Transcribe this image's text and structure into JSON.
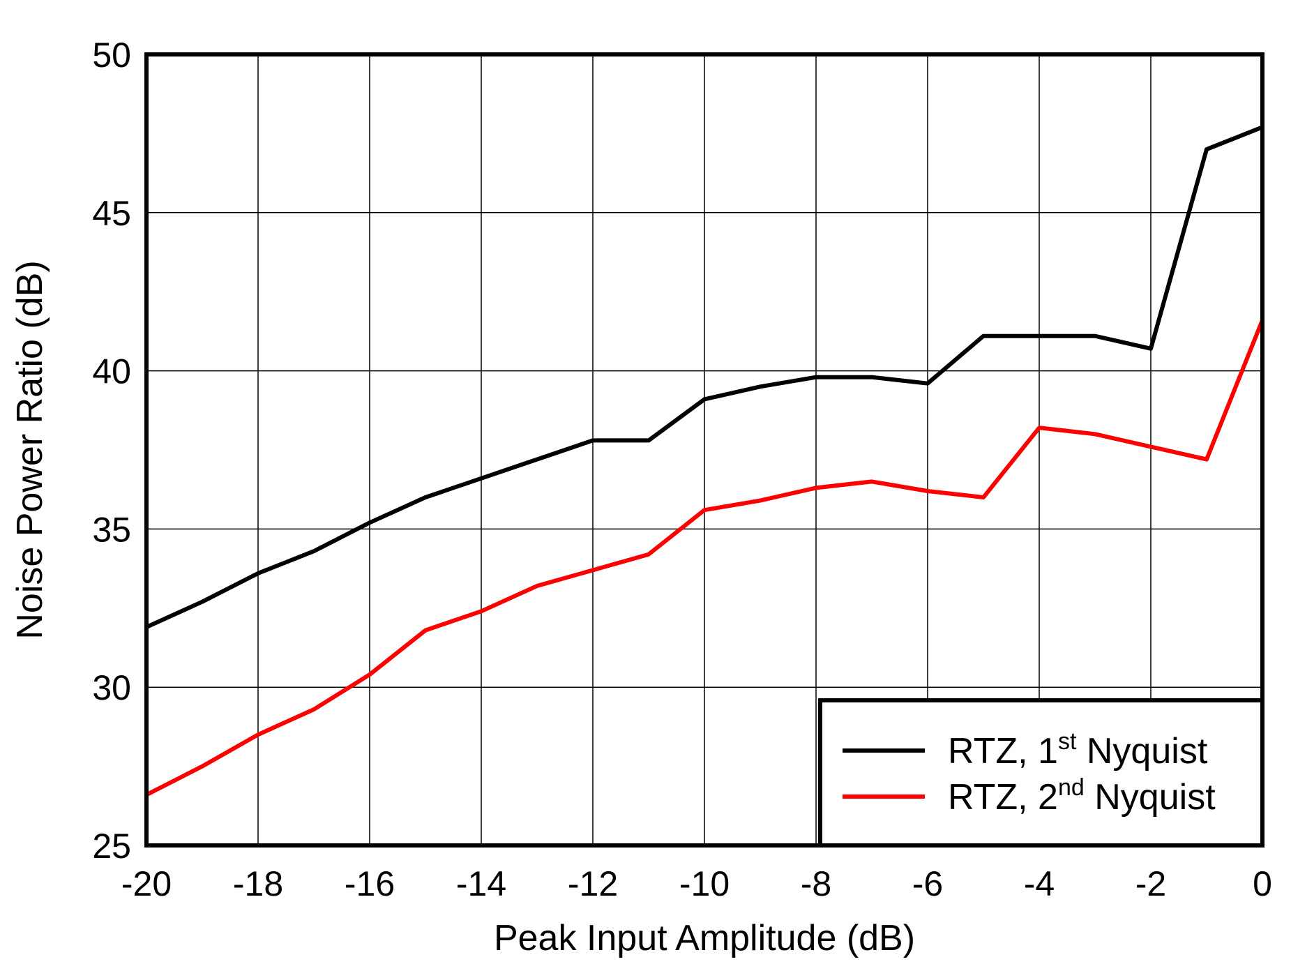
{
  "chart_data": {
    "type": "line",
    "xlabel": "Peak Input Amplitude (dB)",
    "ylabel": "Noise Power Ratio (dB)",
    "xlim": [
      -20,
      0
    ],
    "ylim": [
      25,
      50
    ],
    "x_ticks": [
      "-20",
      "-18",
      "-16",
      "-14",
      "-12",
      "-10",
      "-8",
      "-6",
      "-4",
      "-2",
      "0"
    ],
    "y_ticks": [
      "25",
      "30",
      "35",
      "40",
      "45",
      "50"
    ],
    "grid": true,
    "legend_position": "bottom-right",
    "x": [
      -20,
      -19,
      -18,
      -17,
      -16,
      -15,
      -14,
      -13,
      -12,
      -11,
      -10,
      -9,
      -8,
      -7,
      -6,
      -5,
      -4,
      -3,
      -2,
      -1,
      0
    ],
    "series": [
      {
        "name": "RTZ, 1st Nyquist",
        "name_parts": {
          "prefix": "RTZ, 1",
          "sup": "st",
          "suffix": " Nyquist"
        },
        "color": "#000000",
        "values": [
          31.9,
          32.7,
          33.6,
          34.3,
          35.2,
          36.0,
          36.6,
          37.2,
          37.8,
          37.8,
          39.1,
          39.5,
          39.8,
          39.8,
          39.6,
          41.1,
          41.1,
          41.1,
          40.7,
          47.0,
          47.7
        ]
      },
      {
        "name": "RTZ, 2nd Nyquist",
        "name_parts": {
          "prefix": "RTZ, 2",
          "sup": "nd",
          "suffix": " Nyquist"
        },
        "color": "#ff0000",
        "values": [
          26.6,
          27.5,
          28.5,
          29.3,
          30.4,
          31.8,
          32.4,
          33.2,
          33.7,
          34.2,
          35.6,
          35.9,
          36.3,
          36.5,
          36.2,
          36.0,
          38.2,
          38.0,
          37.6,
          37.2,
          41.6
        ]
      }
    ]
  }
}
